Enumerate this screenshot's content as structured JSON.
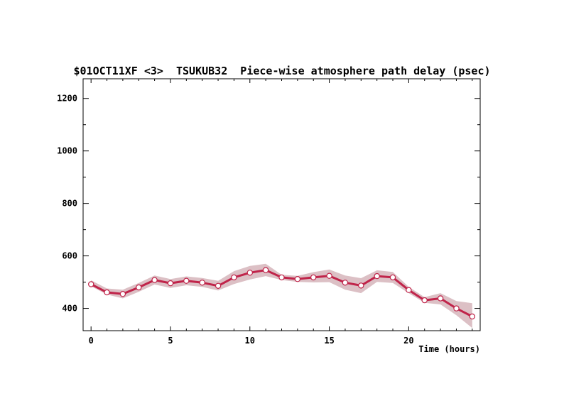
{
  "chart_data": {
    "type": "line",
    "title": "$01OCT11XF <3>  TSUKUB32  Piece-wise atmosphere path delay (psec)",
    "xlabel": "Time (hours)",
    "ylabel": "",
    "xlim": [
      -0.5,
      24.5
    ],
    "ylim": [
      315,
      1275
    ],
    "x_ticks": [
      0,
      5,
      10,
      15,
      20
    ],
    "y_ticks": [
      400,
      600,
      800,
      1000,
      1200
    ],
    "grid": false,
    "legend": "none",
    "series": [
      {
        "x": [
          0,
          1,
          2,
          3,
          4,
          5,
          6,
          7,
          8,
          9,
          10,
          11,
          12,
          13,
          14,
          15,
          16,
          17,
          18,
          19,
          20,
          21,
          22,
          23,
          24
        ],
        "values": [
          492,
          461,
          455,
          480,
          508,
          496,
          505,
          498,
          486,
          518,
          536,
          546,
          518,
          512,
          518,
          524,
          498,
          487,
          523,
          518,
          470,
          431,
          438,
          400,
          369
        ],
        "upper": [
          507,
          476,
          471,
          497,
          525,
          512,
          522,
          516,
          505,
          542,
          562,
          570,
          528,
          524,
          538,
          548,
          525,
          515,
          545,
          539,
          482,
          443,
          458,
          428,
          420
        ],
        "lower": [
          484,
          453,
          438,
          463,
          491,
          478,
          488,
          482,
          468,
          493,
          510,
          523,
          508,
          501,
          499,
          500,
          471,
          458,
          501,
          497,
          458,
          421,
          415,
          374,
          325
        ]
      }
    ],
    "colors": {
      "line": "#c0244a",
      "band": "#dcc0c5",
      "marker_fill": "#ffffff"
    }
  }
}
